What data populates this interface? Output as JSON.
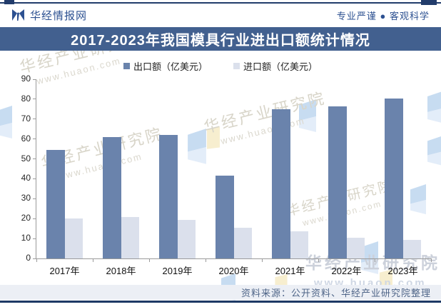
{
  "header": {
    "brand": "华经情报网",
    "tagline": "专业严谨 ● 客观科学"
  },
  "title": "2017-2023年我国模具行业进出口额统计情况",
  "chart_data": {
    "type": "bar",
    "title": "2017-2023年我国模具行业进出口额统计情况",
    "categories": [
      "2017年",
      "2018年",
      "2019年",
      "2020年",
      "2021年",
      "2022年",
      "2023年"
    ],
    "series": [
      {
        "name": "出口额（亿美元）",
        "color": "#6a83ac",
        "values": [
          54.6,
          60.8,
          62.2,
          41.5,
          74.8,
          76.5,
          80.2
        ]
      },
      {
        "name": "进口额（亿美元）",
        "color": "#dbe0ec",
        "values": [
          20.2,
          20.9,
          19.2,
          15.5,
          13.7,
          10.5,
          9.2
        ]
      }
    ],
    "xlabel": "",
    "ylabel": "",
    "ylim": [
      0,
      90
    ],
    "ytick_step": 10,
    "grid": false,
    "legend_position": "top-center"
  },
  "footer": {
    "source": "资料来源：公开资料、华经产业研究院整理"
  },
  "watermarks": {
    "name": "华经产业研究院",
    "url": "www.huaon.com"
  },
  "colors": {
    "title_bar": "#42608f",
    "accent_dark": "#223c6b",
    "export_bar": "#6a83ac",
    "import_bar": "#dbe0ec",
    "footer_bg": "#eceff5"
  }
}
